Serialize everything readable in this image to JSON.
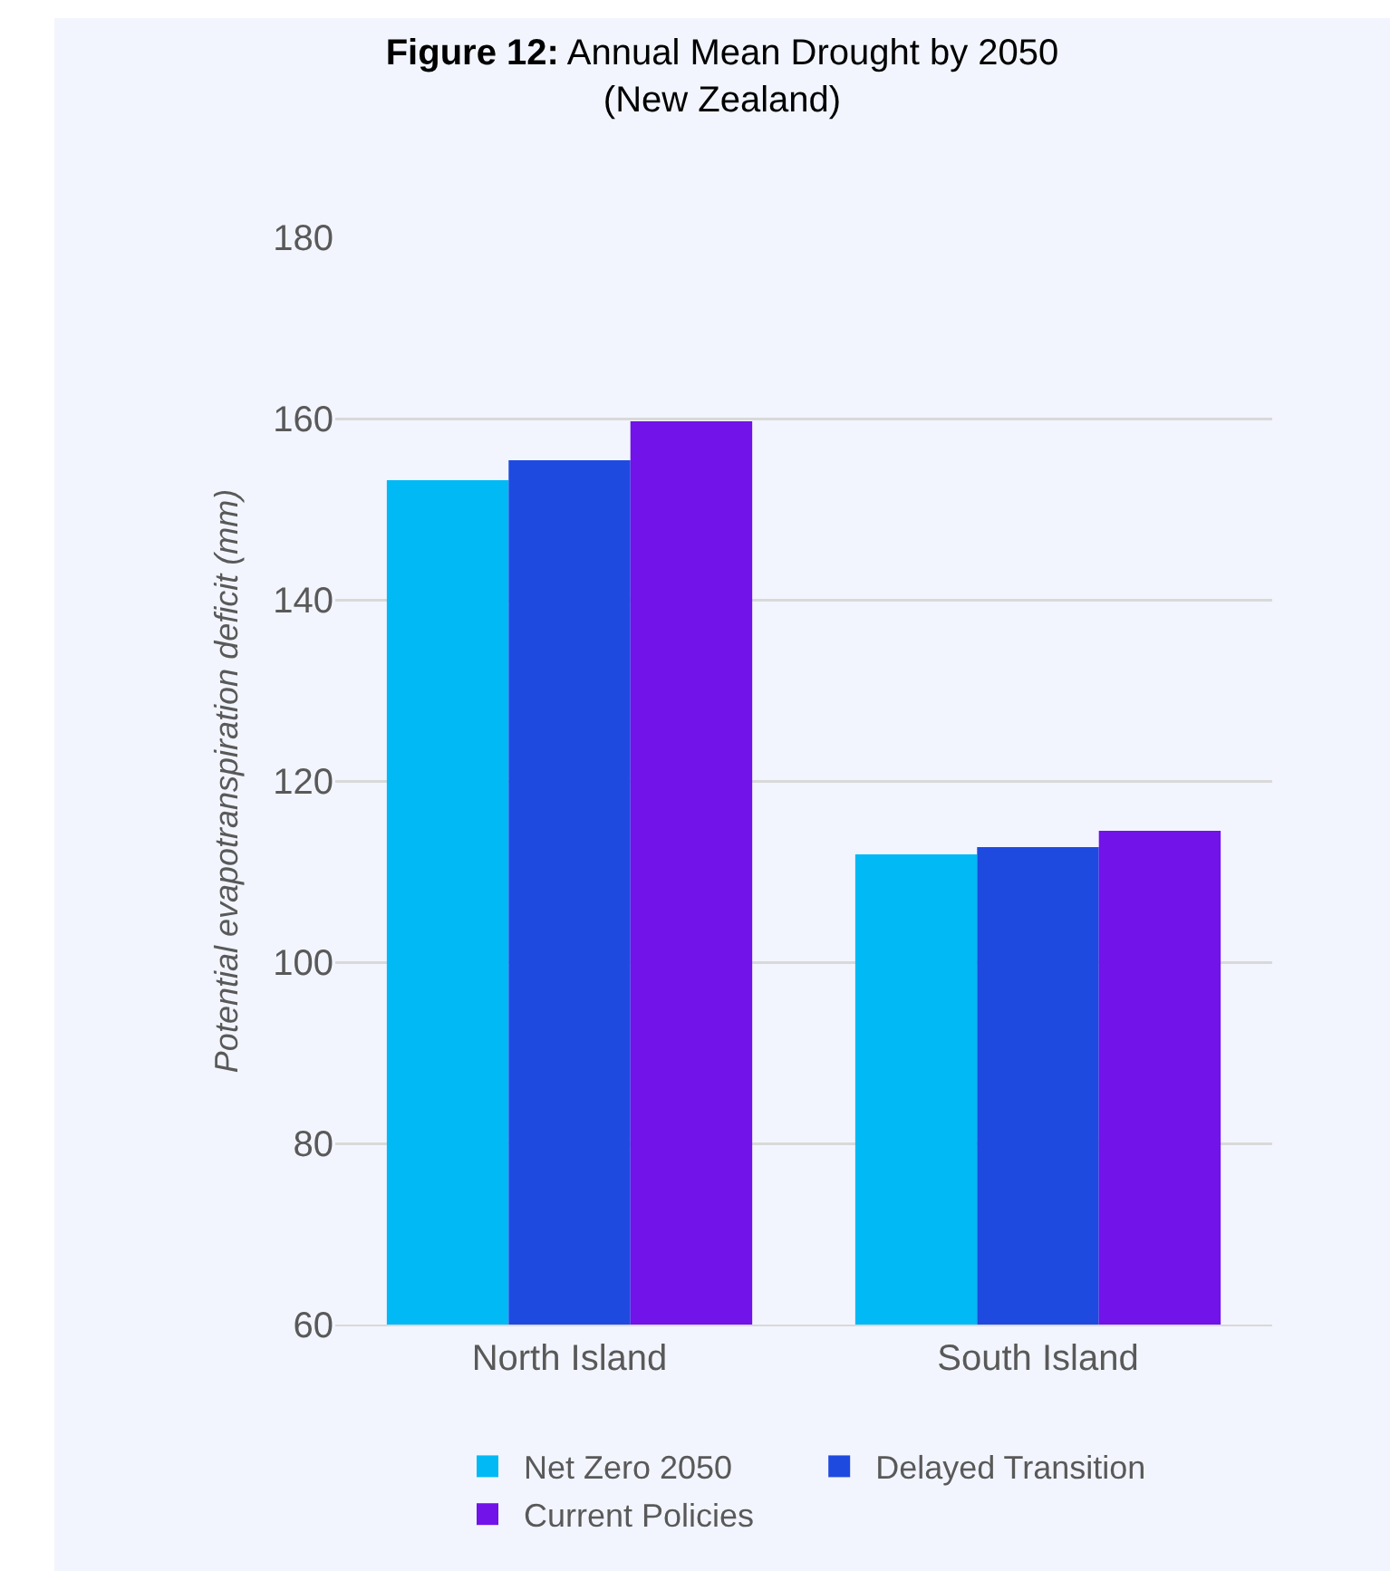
{
  "chart_data": {
    "type": "bar",
    "title": "Figure 12: Annual Mean Drought by 2050",
    "subtitle": "(New Zealand)",
    "ylabel": "Potential evapotranspiration deficit (mm)",
    "categories": [
      "North Island",
      "South Island"
    ],
    "series": [
      {
        "name": "Net Zero 2050",
        "color": "#00b9f5",
        "values": [
          153.2,
          111.9
        ]
      },
      {
        "name": "Delayed Transition",
        "color": "#1f4ae0",
        "values": [
          155.4,
          112.7
        ]
      },
      {
        "name": "Current Policies",
        "color": "#7113e9",
        "values": [
          159.7,
          114.5
        ]
      }
    ],
    "ylim": [
      60,
      180
    ],
    "yticks": [
      60,
      80,
      100,
      120,
      140,
      160,
      180
    ],
    "grid": "y",
    "legend": "bottom"
  }
}
